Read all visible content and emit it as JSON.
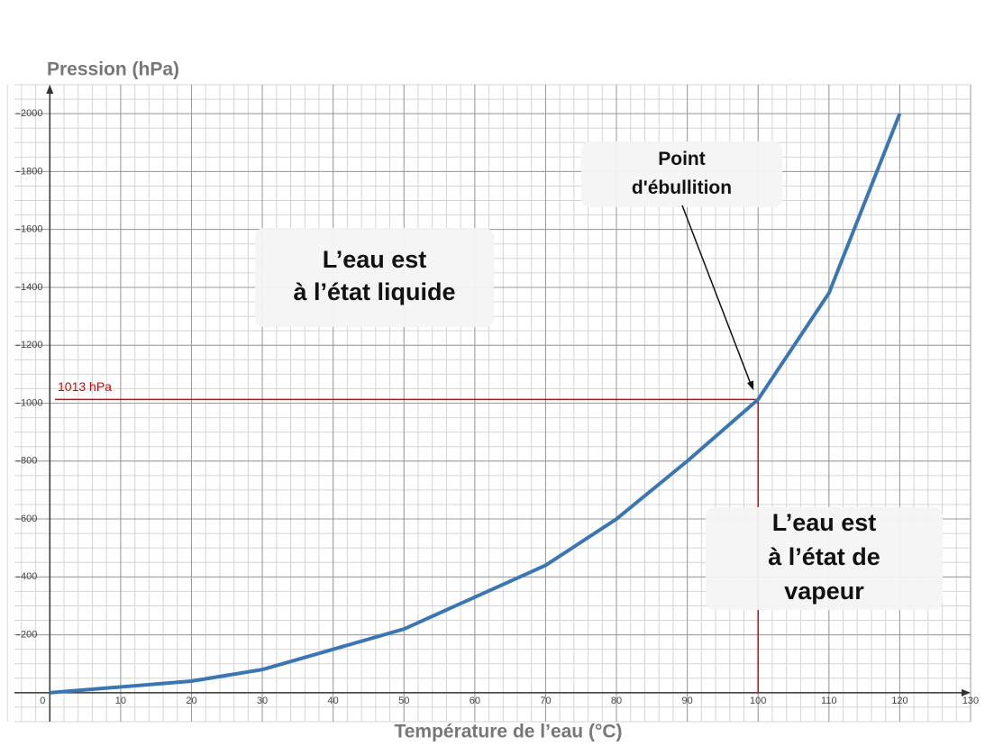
{
  "chart_data": {
    "type": "line",
    "x_label": "Température de l’eau (°C)",
    "y_label": "Pression (hPa)",
    "x": [
      0,
      10,
      20,
      30,
      40,
      50,
      60,
      70,
      80,
      90,
      100,
      110,
      120
    ],
    "series": [
      {
        "color": "#3a75b4",
        "values": [
          0,
          20,
          40,
          80,
          150,
          220,
          330,
          440,
          600,
          800,
          1013,
          1380,
          2000
        ]
      }
    ],
    "xlim": [
      -5,
      130
    ],
    "ylim": [
      -100,
      2100
    ],
    "xticks": [
      0,
      10,
      20,
      30,
      40,
      50,
      60,
      70,
      80,
      90,
      100,
      110,
      120,
      130
    ],
    "yticks": [
      200,
      400,
      600,
      800,
      1000,
      1200,
      1400,
      1600,
      1800,
      2000
    ],
    "grid": true,
    "reference": {
      "x": 100,
      "y": 1013,
      "label": "1013 hPa",
      "color": "#e00000"
    },
    "annotations": [
      {
        "lines": [
          "L’eau est",
          "à l’état liquide"
        ]
      },
      {
        "lines": [
          "Point",
          "d'ébullition"
        ]
      },
      {
        "lines": [
          "L’eau est",
          "à l’état de",
          "vapeur"
        ]
      }
    ]
  }
}
